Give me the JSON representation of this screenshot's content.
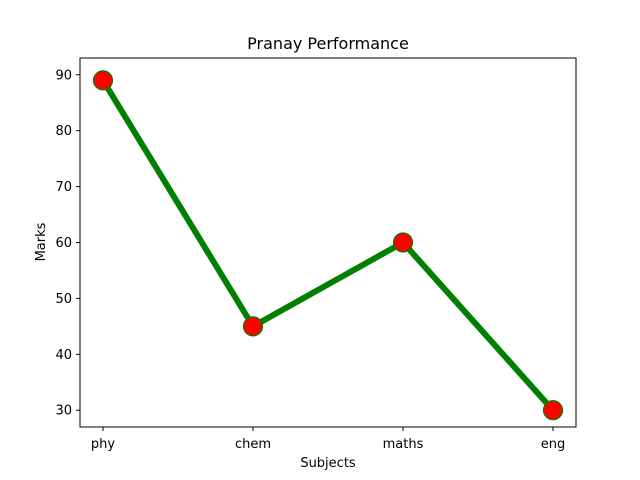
{
  "chart_data": {
    "type": "line",
    "title": "Pranay Performance",
    "xlabel": "Subjects",
    "ylabel": "Marks",
    "categories": [
      "phy",
      "chem",
      "maths",
      "eng"
    ],
    "series": [
      {
        "values": [
          89,
          45,
          60,
          30
        ]
      }
    ],
    "ylim": [
      27,
      93
    ],
    "yticks": [
      30,
      40,
      50,
      60,
      70,
      80,
      90
    ],
    "grid": false,
    "colors": {
      "line": "#008000",
      "marker_fill": "#ff0000",
      "marker_edge": "#008000"
    }
  }
}
